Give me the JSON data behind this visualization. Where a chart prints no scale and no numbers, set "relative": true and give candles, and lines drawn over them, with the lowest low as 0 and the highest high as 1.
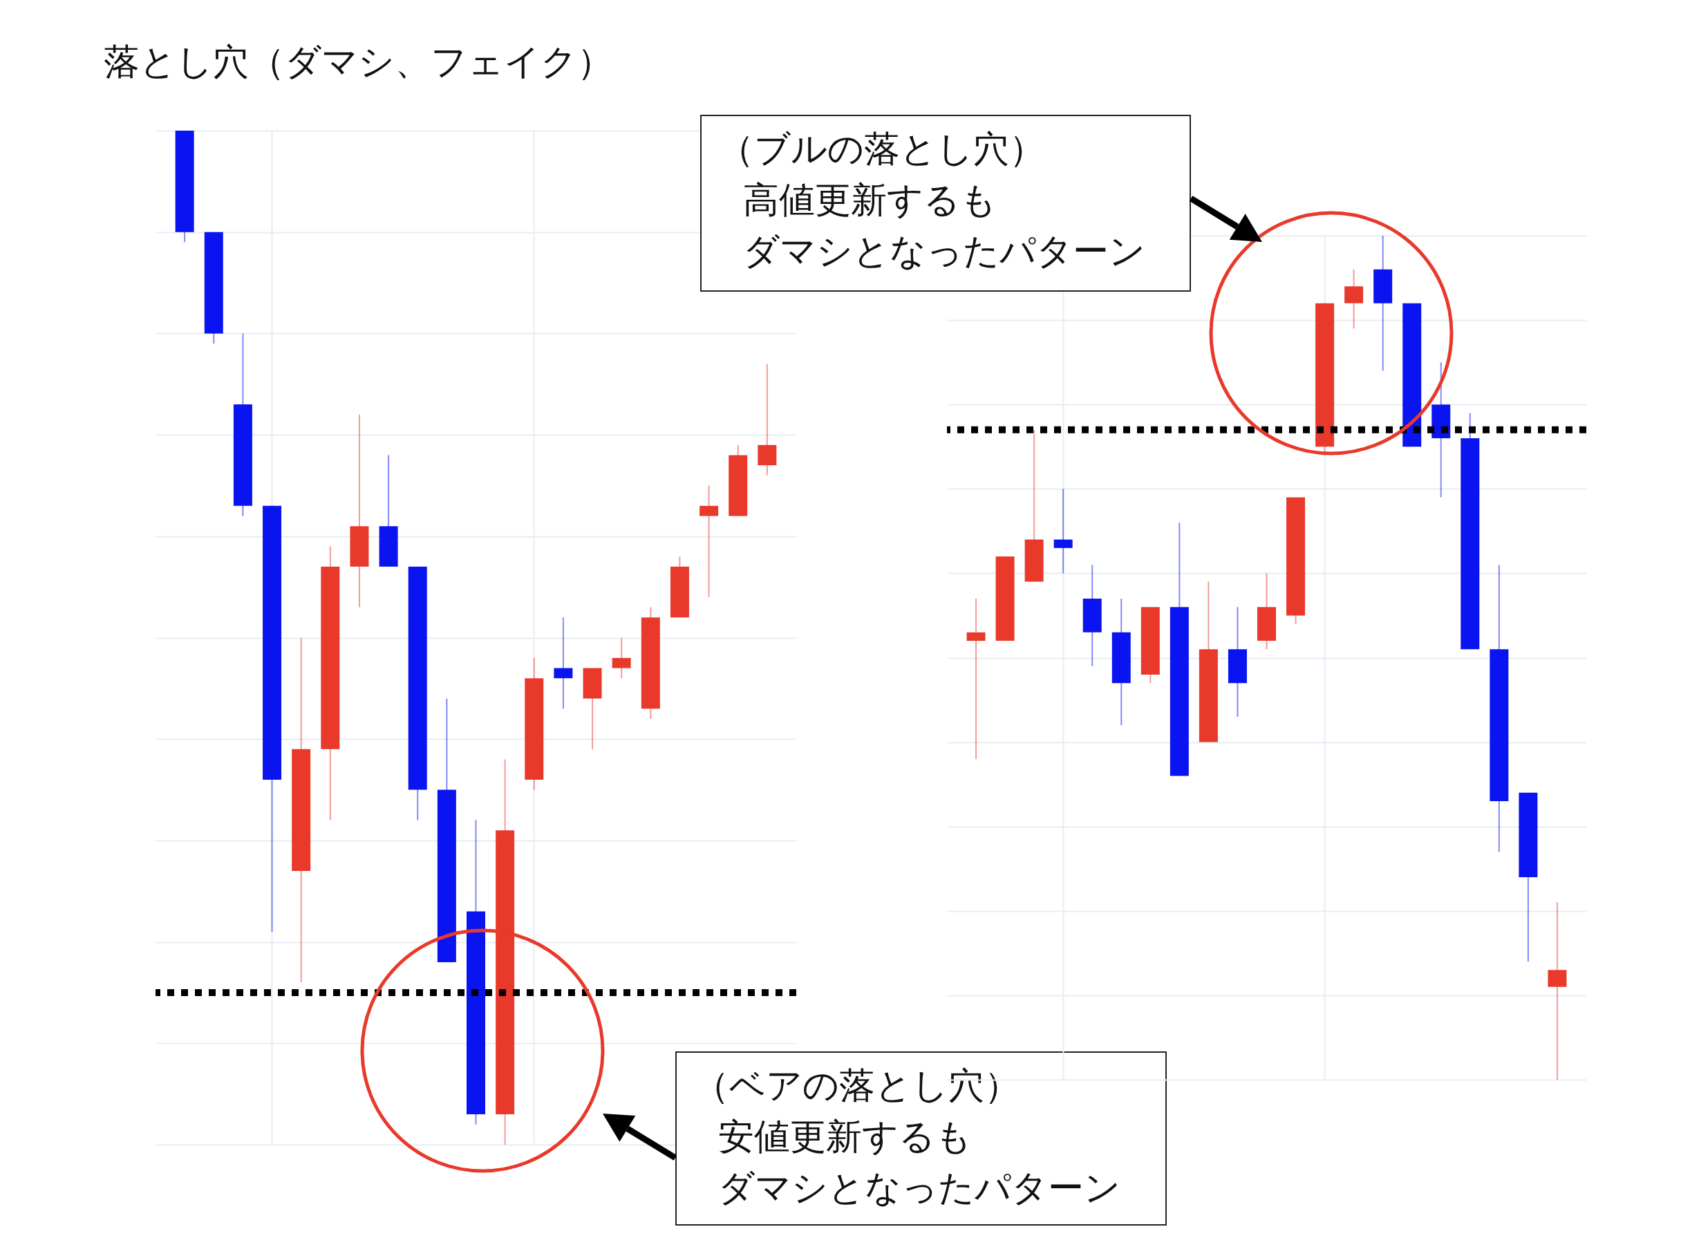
{
  "chart_data": [
    {
      "type": "candlestick",
      "title": "落とし穴（ダマシ、フェイク）",
      "relative": true,
      "grid": true,
      "categories": [
        null,
        null,
        null,
        null,
        null,
        null,
        null,
        null,
        null,
        null,
        null,
        null,
        null,
        null,
        null,
        null,
        null,
        null,
        null,
        null,
        null
      ],
      "ohlc": [
        [
          1.0,
          1.0,
          0.89,
          0.9
        ],
        [
          0.9,
          0.9,
          0.79,
          0.8
        ],
        [
          0.73,
          0.8,
          0.62,
          0.63
        ],
        [
          0.63,
          0.63,
          0.21,
          0.36
        ],
        [
          0.27,
          0.5,
          0.16,
          0.39
        ],
        [
          0.39,
          0.59,
          0.32,
          0.57
        ],
        [
          0.57,
          0.72,
          0.53,
          0.61
        ],
        [
          0.61,
          0.68,
          0.57,
          0.57
        ],
        [
          0.57,
          0.57,
          0.32,
          0.35
        ],
        [
          0.35,
          0.44,
          0.18,
          0.18
        ],
        [
          0.23,
          0.32,
          0.02,
          0.03
        ],
        [
          0.03,
          0.38,
          0,
          0.31
        ],
        [
          0.36,
          0.48,
          0.35,
          0.46
        ],
        [
          0.47,
          0.52,
          0.43,
          0.46
        ],
        [
          0.44,
          0.47,
          0.39,
          0.47
        ],
        [
          0.47,
          0.5,
          0.46,
          0.48
        ],
        [
          0.43,
          0.53,
          0.42,
          0.52
        ],
        [
          0.52,
          0.58,
          0.52,
          0.57
        ],
        [
          0.62,
          0.65,
          0.54,
          0.63
        ],
        [
          0.62,
          0.69,
          0.62,
          0.68
        ],
        [
          0.67,
          0.77,
          0.66,
          0.69
        ]
      ],
      "colors": [
        "#0a14f0",
        "#0a14f0",
        "#0a14f0",
        "#0a14f0",
        "#e8392b",
        "#e8392b",
        "#e8392b",
        "#0a14f0",
        "#0a14f0",
        "#0a14f0",
        "#0a14f0",
        "#e8392b",
        "#e8392b",
        "#0a14f0",
        "#e8392b",
        "#e8392b",
        "#e8392b",
        "#e8392b",
        "#e8392b",
        "#e8392b",
        "#e8392b"
      ],
      "ref_lines": [
        {
          "axis": "y",
          "value": 0.15,
          "color": "#000000",
          "line_style": "dotted"
        }
      ],
      "annotations": [
        "（ベアの落とし穴）",
        "安値更新するも",
        "ダマシとなったパターン"
      ]
    },
    {
      "type": "candlestick",
      "relative": true,
      "grid": true,
      "categories": [
        null,
        null,
        null,
        null,
        null,
        null,
        null,
        null,
        null,
        null,
        null,
        null,
        null,
        null,
        null,
        null,
        null,
        null,
        null,
        null,
        null
      ],
      "ohlc": [
        [
          0.52,
          0.57,
          0.38,
          0.53
        ],
        [
          0.52,
          0.62,
          0.52,
          0.62
        ],
        [
          0.59,
          0.77,
          0.59,
          0.64
        ],
        [
          0.64,
          0.7,
          0.6,
          0.63
        ],
        [
          0.57,
          0.61,
          0.49,
          0.53
        ],
        [
          0.53,
          0.57,
          0.42,
          0.47
        ],
        [
          0.48,
          0.56,
          0.47,
          0.56
        ],
        [
          0.56,
          0.66,
          0.36,
          0.36
        ],
        [
          0.4,
          0.59,
          0.4,
          0.51
        ],
        [
          0.51,
          0.56,
          0.43,
          0.47
        ],
        [
          0.52,
          0.6,
          0.51,
          0.56
        ],
        [
          0.55,
          0.69,
          0.54,
          0.69
        ],
        [
          0.75,
          0.92,
          0.74,
          0.92
        ],
        [
          0.92,
          0.96,
          0.89,
          0.94
        ],
        [
          0.96,
          1.0,
          0.84,
          0.92
        ],
        [
          0.92,
          0.92,
          0.75,
          0.75
        ],
        [
          0.8,
          0.85,
          0.69,
          0.76
        ],
        [
          0.76,
          0.79,
          0.51,
          0.51
        ],
        [
          0.51,
          0.61,
          0.27,
          0.33
        ],
        [
          0.34,
          0.34,
          0.14,
          0.24
        ],
        [
          0.11,
          0.21,
          0,
          0.13
        ]
      ],
      "colors": [
        "#e8392b",
        "#e8392b",
        "#e8392b",
        "#0a14f0",
        "#0a14f0",
        "#0a14f0",
        "#e8392b",
        "#0a14f0",
        "#e8392b",
        "#0a14f0",
        "#e8392b",
        "#e8392b",
        "#e8392b",
        "#e8392b",
        "#0a14f0",
        "#0a14f0",
        "#0a14f0",
        "#0a14f0",
        "#0a14f0",
        "#0a14f0",
        "#e8392b"
      ],
      "ref_lines": [
        {
          "axis": "y",
          "value": 0.77,
          "color": "#000000",
          "line_style": "dotted"
        }
      ],
      "annotations": [
        "（ブルの落とし穴）",
        "高値更新するも",
        "ダマシとなったパターン"
      ]
    }
  ]
}
